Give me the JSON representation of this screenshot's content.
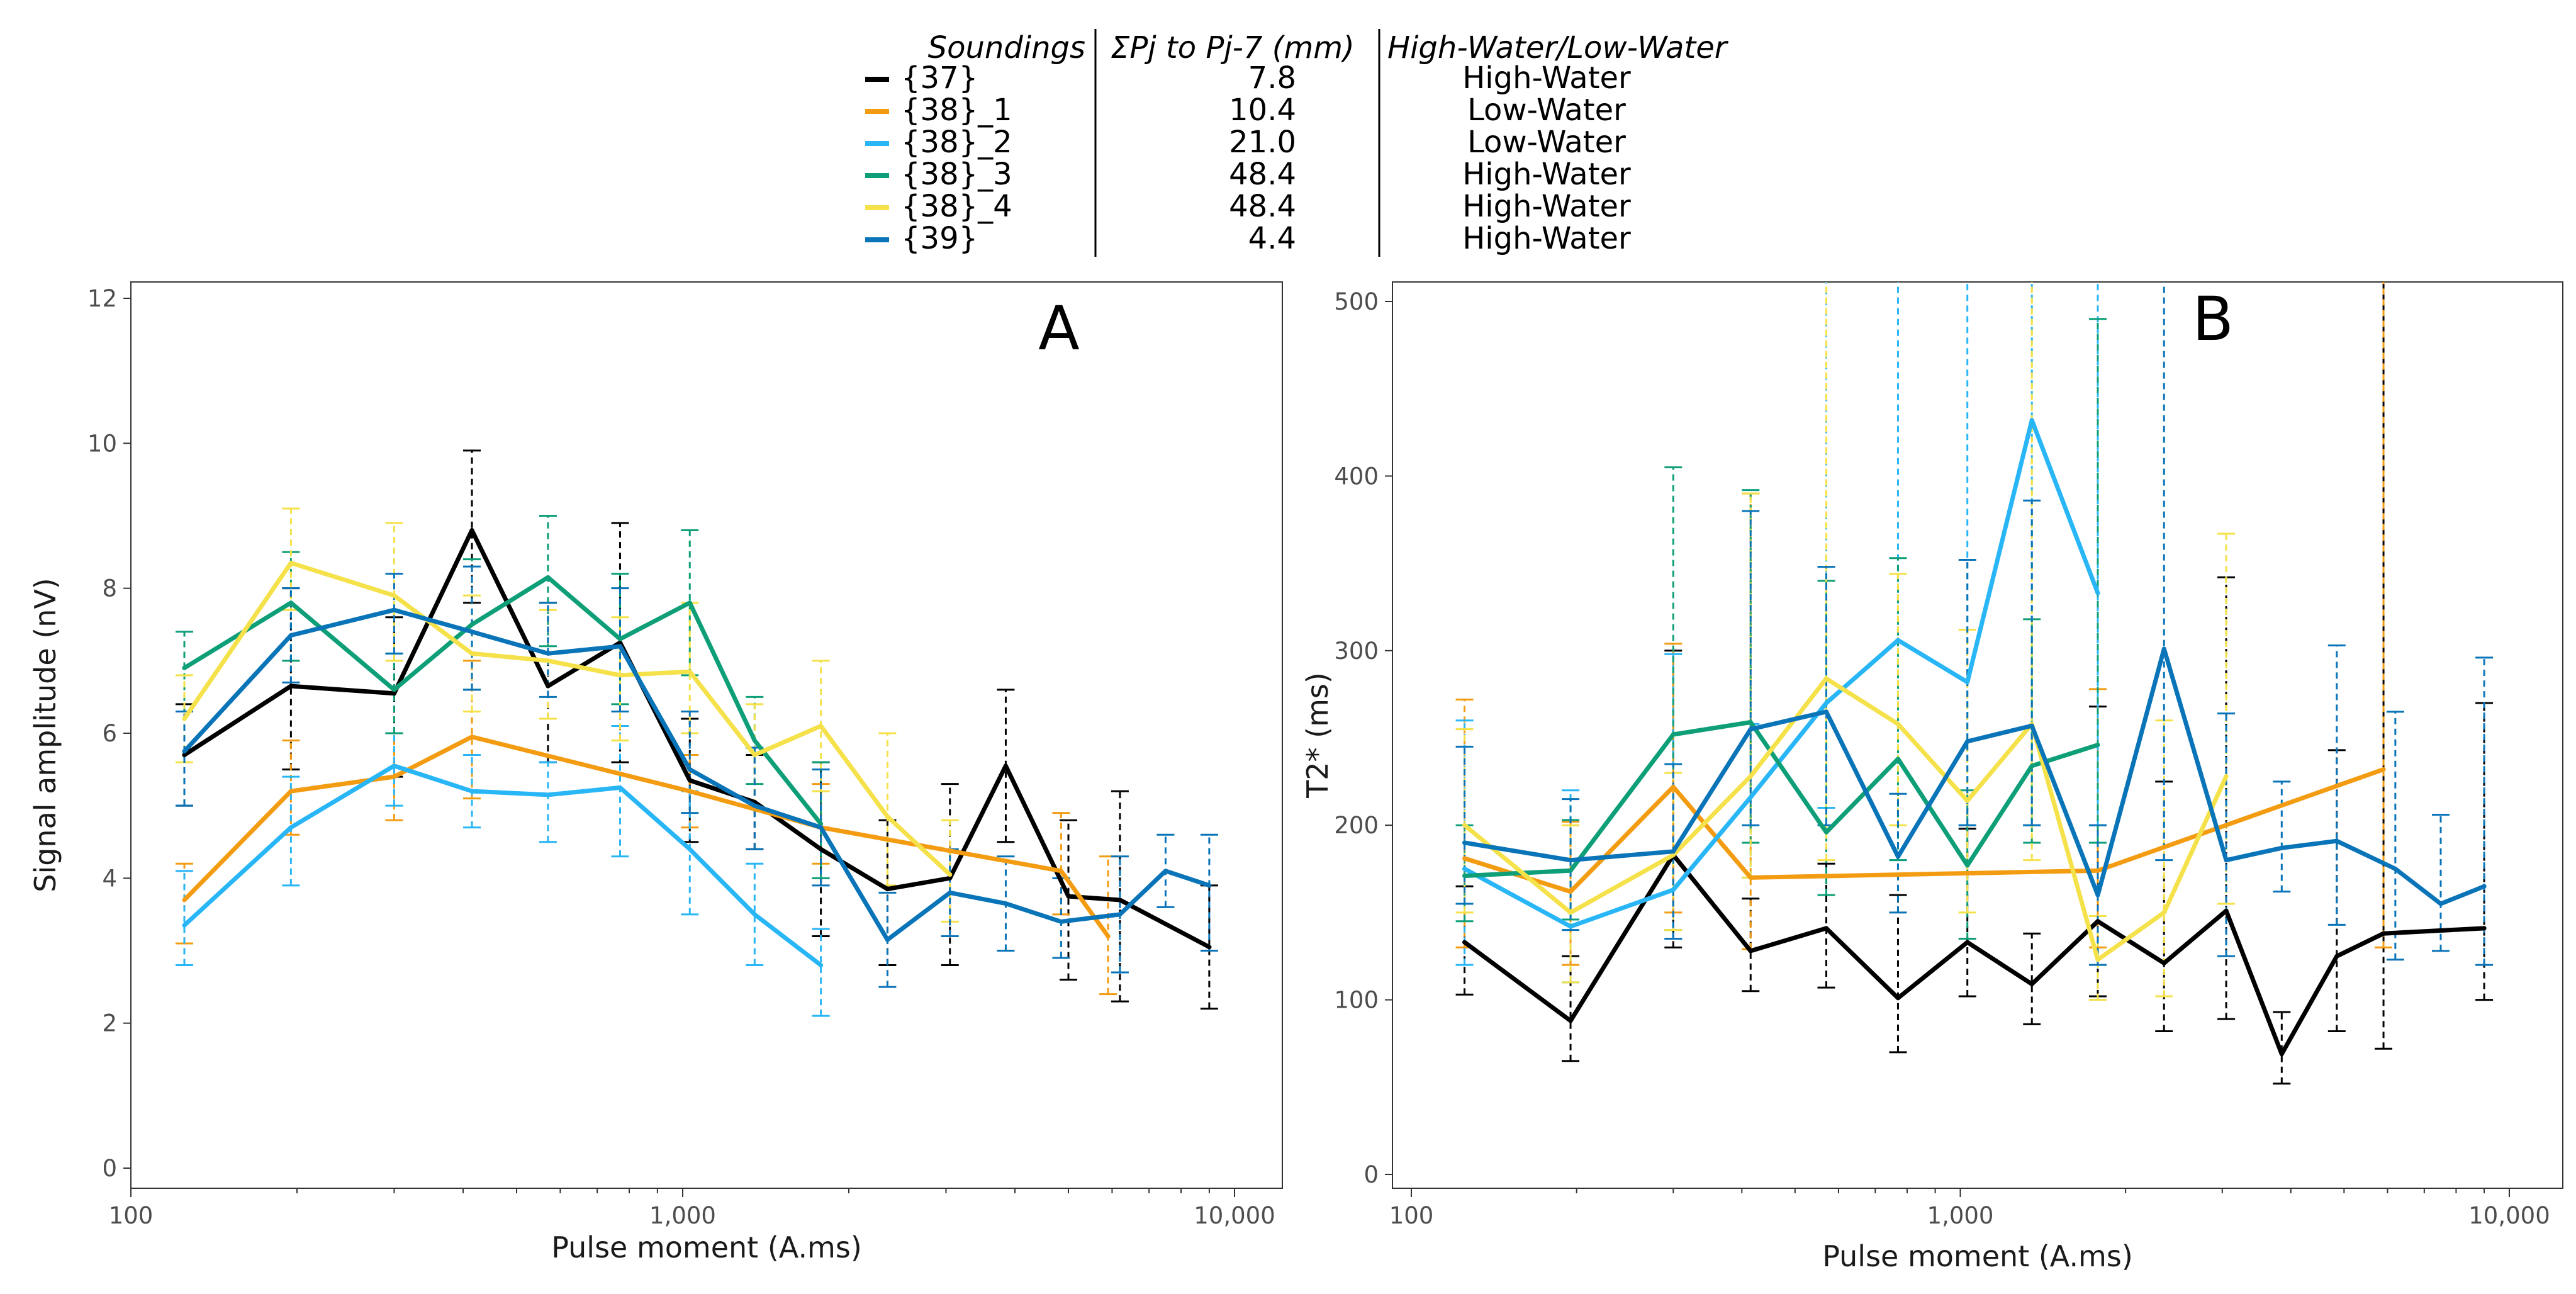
{
  "legend": {
    "headers": [
      "Soundings",
      "ΣPj to Pj-7 (mm)",
      "High-Water/Low-Water"
    ],
    "rows": [
      {
        "name": "{37}",
        "sum": "7.8",
        "state": "High-Water",
        "color": "#000000"
      },
      {
        "name": "{38}_1",
        "sum": "10.4",
        "state": "Low-Water",
        "color": "#F39C12"
      },
      {
        "name": "{38}_2",
        "sum": "21.0",
        "state": "Low-Water",
        "color": "#29B6F6"
      },
      {
        "name": "{38}_3",
        "sum": "48.4",
        "state": "High-Water",
        "color": "#0E9F78"
      },
      {
        "name": "{38}_4",
        "sum": "48.4",
        "state": "High-Water",
        "color": "#F5E14A"
      },
      {
        "name": "{39}",
        "sum": "4.4",
        "state": "High-Water",
        "color": "#0A74B8"
      }
    ]
  },
  "chart_data": [
    {
      "id": "A",
      "type": "line",
      "panel_label": "A",
      "title": "",
      "xlabel": "Pulse moment (A.ms)",
      "ylabel": "Signal amplitude (nV)",
      "xscale": "log",
      "xlim": [
        100,
        10000
      ],
      "ylim": [
        -0.3,
        12.5
      ],
      "xticks": [
        100,
        1000,
        10000
      ],
      "xtick_labels": [
        "100",
        "1,000",
        "10,000"
      ],
      "yticks": [
        0,
        2,
        4,
        6,
        8,
        10,
        12
      ],
      "ytick_labels": [
        "0",
        "2",
        "4",
        "6",
        "8",
        "10",
        "12"
      ],
      "series": [
        {
          "name": "{37}",
          "color": "#000000",
          "x": [
            125,
            195,
            300,
            415,
            570,
            770,
            1030,
            1350,
            1780,
            2350,
            3050,
            3850,
            5000,
            6200,
            9000
          ],
          "y": [
            5.7,
            6.65,
            6.55,
            8.8,
            6.65,
            7.25,
            5.35,
            5.05,
            4.4,
            3.85,
            4.0,
            5.55,
            3.75,
            3.7,
            3.05
          ],
          "err": [
            [
              5.0,
              6.4
            ],
            [
              5.5,
              8.0
            ],
            [
              5.4,
              7.6
            ],
            [
              7.8,
              9.9
            ],
            [
              5.6,
              7.8
            ],
            [
              5.6,
              8.9
            ],
            [
              4.5,
              6.2
            ],
            [
              4.4,
              5.7
            ],
            [
              3.2,
              5.6
            ],
            [
              2.8,
              4.8
            ],
            [
              2.8,
              5.3
            ],
            [
              4.5,
              6.6
            ],
            [
              2.6,
              4.8
            ],
            [
              2.3,
              5.2
            ],
            [
              2.2,
              3.9
            ]
          ]
        },
        {
          "name": "{38}_1",
          "color": "#F39C12",
          "x": [
            125,
            195,
            300,
            415,
            1030,
            1780,
            4850,
            5900
          ],
          "y": [
            3.7,
            5.2,
            5.4,
            5.95,
            5.2,
            4.7,
            4.1,
            3.2
          ],
          "err": [
            [
              3.1,
              4.2
            ],
            [
              4.6,
              5.9
            ],
            [
              4.8,
              6.0
            ],
            [
              5.1,
              7.0
            ],
            [
              4.7,
              5.7
            ],
            [
              4.2,
              5.3
            ],
            [
              3.5,
              4.9
            ],
            [
              2.4,
              4.3
            ]
          ]
        },
        {
          "name": "{38}_2",
          "color": "#29B6F6",
          "x": [
            125,
            195,
            300,
            415,
            570,
            770,
            1030,
            1350,
            1780
          ],
          "y": [
            3.35,
            4.7,
            5.55,
            5.2,
            5.15,
            5.25,
            4.4,
            3.5,
            2.8
          ],
          "err": [
            [
              2.8,
              4.1
            ],
            [
              3.9,
              5.4
            ],
            [
              5.0,
              6.0
            ],
            [
              4.7,
              5.7
            ],
            [
              4.5,
              5.6
            ],
            [
              4.3,
              6.1
            ],
            [
              3.5,
              5.2
            ],
            [
              2.8,
              4.2
            ],
            [
              2.1,
              3.3
            ]
          ]
        },
        {
          "name": "{38}_3",
          "color": "#0E9F78",
          "x": [
            125,
            195,
            300,
            415,
            570,
            770,
            1030,
            1350,
            1780
          ],
          "y": [
            6.9,
            7.8,
            6.6,
            7.5,
            8.15,
            7.3,
            7.8,
            5.9,
            4.75
          ],
          "err": [
            [
              6.3,
              7.4
            ],
            [
              7.0,
              8.5
            ],
            [
              6.0,
              7.1
            ],
            [
              6.6,
              8.4
            ],
            [
              7.2,
              9.0
            ],
            [
              6.4,
              8.2
            ],
            [
              6.8,
              8.8
            ],
            [
              5.3,
              6.5
            ],
            [
              4.0,
              5.6
            ]
          ]
        },
        {
          "name": "{38}_4",
          "color": "#F5E14A",
          "x": [
            125,
            195,
            300,
            415,
            570,
            770,
            1030,
            1350,
            1780,
            2350,
            3050
          ],
          "y": [
            6.2,
            8.35,
            7.9,
            7.1,
            7.0,
            6.8,
            6.85,
            5.7,
            6.1,
            4.85,
            4.05
          ],
          "err": [
            [
              5.6,
              6.8
            ],
            [
              7.7,
              9.1
            ],
            [
              7.0,
              8.9
            ],
            [
              6.3,
              7.9
            ],
            [
              6.2,
              7.7
            ],
            [
              5.9,
              7.6
            ],
            [
              6.0,
              7.8
            ],
            [
              5.0,
              6.4
            ],
            [
              5.2,
              7.0
            ],
            [
              3.9,
              6.0
            ],
            [
              3.4,
              4.8
            ]
          ]
        },
        {
          "name": "{39}",
          "color": "#0A74B8",
          "x": [
            125,
            195,
            300,
            415,
            570,
            770,
            1030,
            1350,
            1780,
            2350,
            3050,
            3850,
            4850,
            6200,
            7500,
            9000
          ],
          "y": [
            5.75,
            7.35,
            7.7,
            7.4,
            7.1,
            7.2,
            5.5,
            5.0,
            4.7,
            3.15,
            3.8,
            3.65,
            3.4,
            3.5,
            4.1,
            3.9
          ],
          "err": [
            [
              5.0,
              6.3
            ],
            [
              6.7,
              8.0
            ],
            [
              7.1,
              8.2
            ],
            [
              6.6,
              8.3
            ],
            [
              6.5,
              7.8
            ],
            [
              6.3,
              8.0
            ],
            [
              4.9,
              6.3
            ],
            [
              4.4,
              5.8
            ],
            [
              3.9,
              5.5
            ],
            [
              2.5,
              3.8
            ],
            [
              3.2,
              4.4
            ],
            [
              3.0,
              4.3
            ],
            [
              2.9,
              4.0
            ],
            [
              2.7,
              4.3
            ],
            [
              3.6,
              4.6
            ],
            [
              3.0,
              4.6
            ]
          ]
        }
      ]
    },
    {
      "id": "B",
      "type": "line",
      "panel_label": "B",
      "title": "",
      "xlabel": "Pulse moment (A.ms)",
      "ylabel": "T2* (ms)",
      "xscale": "log",
      "xlim": [
        100,
        10000
      ],
      "ylim": [
        -35,
        520
      ],
      "xticks": [
        100,
        1000,
        10000
      ],
      "xtick_labels": [
        "100",
        "1,000",
        "10,000"
      ],
      "yticks": [
        0,
        100,
        200,
        300,
        400,
        500
      ],
      "ytick_labels": [
        "0",
        "100",
        "200",
        "300",
        "400",
        "500"
      ],
      "series": [
        {
          "name": "{37}",
          "color": "#000000",
          "x": [
            125,
            195,
            300,
            415,
            570,
            770,
            1030,
            1350,
            1780,
            2350,
            3050,
            3850,
            4850,
            5900,
            9000
          ],
          "y": [
            133,
            88,
            183,
            128,
            141,
            101,
            133,
            109,
            145,
            121,
            151,
            69,
            125,
            138,
            141
          ],
          "err": [
            [
              103,
              165
            ],
            [
              65,
              125
            ],
            [
              130,
              300
            ],
            [
              105,
              158
            ],
            [
              107,
              178
            ],
            [
              70,
              160
            ],
            [
              102,
              198
            ],
            [
              86,
              138
            ],
            [
              102,
              268
            ],
            [
              82,
              225
            ],
            [
              89,
              342
            ],
            [
              52,
              93
            ],
            [
              82,
              243
            ],
            [
              72,
              512
            ],
            [
              100,
              270
            ]
          ]
        },
        {
          "name": "{38}_1",
          "color": "#F39C12",
          "x": [
            125,
            195,
            300,
            415,
            1780,
            5900
          ],
          "y": [
            181,
            162,
            222,
            170,
            174,
            232
          ],
          "err": [
            [
              130,
              272
            ],
            [
              120,
              202
            ],
            [
              150,
              304
            ],
            [
              129,
              390
            ],
            [
              130,
              278
            ],
            [
              130,
              600
            ]
          ]
        },
        {
          "name": "{38}_2",
          "color": "#29B6F6",
          "x": [
            125,
            195,
            300,
            415,
            570,
            770,
            1030,
            1350,
            1780
          ],
          "y": [
            175,
            142,
            163,
            216,
            270,
            306,
            282,
            432,
            333
          ],
          "err": [
            [
              120,
              260
            ],
            [
              110,
              220
            ],
            [
              135,
              298
            ],
            [
              170,
              258
            ],
            [
              210,
              600
            ],
            [
              180,
              600
            ],
            [
              200,
              600
            ],
            [
              200,
              600
            ],
            [
              200,
              600
            ]
          ]
        },
        {
          "name": "{38}_3",
          "color": "#0E9F78",
          "x": [
            125,
            195,
            300,
            415,
            570,
            770,
            1030,
            1350,
            1780
          ],
          "y": [
            171,
            174,
            252,
            259,
            196,
            238,
            177,
            234,
            246
          ],
          "err": [
            [
              145,
              200
            ],
            [
              146,
              203
            ],
            [
              140,
              405
            ],
            [
              190,
              392
            ],
            [
              160,
              340
            ],
            [
              180,
              353
            ],
            [
              135,
              220
            ],
            [
              190,
              318
            ],
            [
              190,
              490
            ]
          ]
        },
        {
          "name": "{38}_4",
          "color": "#F5E14A",
          "x": [
            125,
            195,
            300,
            415,
            570,
            770,
            1030,
            1350,
            1780,
            2350,
            3050
          ],
          "y": [
            200,
            150,
            183,
            228,
            284,
            258,
            214,
            258,
            123,
            150,
            228
          ],
          "err": [
            [
              150,
              255
            ],
            [
              110,
              200
            ],
            [
              140,
              230
            ],
            [
              170,
              390
            ],
            [
              180,
              600
            ],
            [
              200,
              344
            ],
            [
              150,
              312
            ],
            [
              180,
              600
            ],
            [
              100,
              148
            ],
            [
              102,
              260
            ],
            [
              155,
              367
            ]
          ]
        },
        {
          "name": "{39}",
          "color": "#0A74B8",
          "x": [
            125,
            195,
            300,
            415,
            570,
            770,
            1030,
            1350,
            1780,
            2350,
            3050,
            3850,
            4850,
            6200,
            7500,
            9000
          ],
          "y": [
            190,
            180,
            185,
            255,
            265,
            182,
            248,
            257,
            160,
            301,
            180,
            187,
            191,
            175,
            155,
            165
          ],
          "err": [
            [
              155,
              245
            ],
            [
              140,
              215
            ],
            [
              135,
              235
            ],
            [
              200,
              380
            ],
            [
              200,
              348
            ],
            [
              150,
              218
            ],
            [
              200,
              352
            ],
            [
              200,
              386
            ],
            [
              120,
              200
            ],
            [
              180,
              600
            ],
            [
              125,
              264
            ],
            [
              162,
              225
            ],
            [
              143,
              303
            ],
            [
              123,
              265
            ],
            [
              128,
              206
            ],
            [
              120,
              296
            ]
          ]
        }
      ]
    }
  ]
}
